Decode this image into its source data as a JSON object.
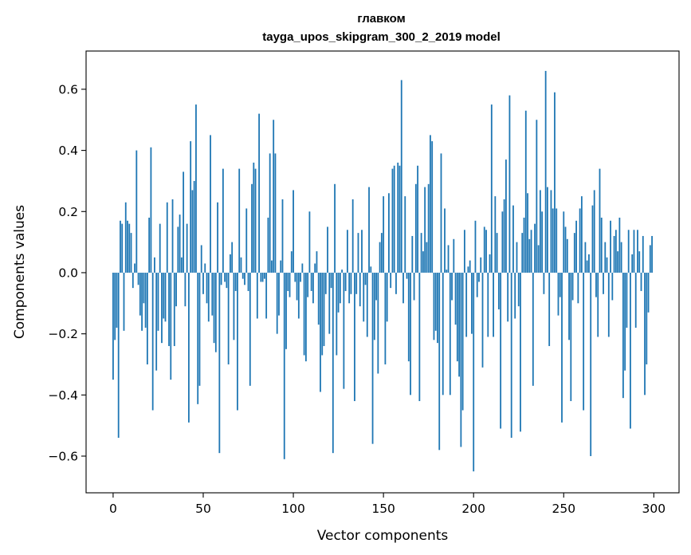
{
  "chart_data": {
    "type": "bar",
    "title": "главком",
    "subtitle": "tayga_upos_skipgram_300_2_2019 model",
    "xlabel": "Vector components",
    "ylabel": "Components values",
    "xlim": [
      -15,
      314
    ],
    "ylim": [
      -0.72,
      0.725
    ],
    "xticks": [
      0,
      50,
      100,
      150,
      200,
      250,
      300
    ],
    "yticks": [
      -0.6,
      -0.4,
      -0.2,
      0.0,
      0.2,
      0.4,
      0.6
    ],
    "xtick_labels": [
      "0",
      "50",
      "100",
      "150",
      "200",
      "250",
      "300"
    ],
    "ytick_labels": [
      "−0.6",
      "−0.4",
      "−0.2",
      "0.0",
      "0.2",
      "0.4",
      "0.6"
    ],
    "grid": false,
    "bar_color": "#1f77b4",
    "values": [
      -0.35,
      -0.22,
      -0.18,
      -0.54,
      0.17,
      0.16,
      -0.19,
      0.23,
      0.17,
      0.16,
      0.13,
      -0.05,
      0.03,
      0.4,
      -0.04,
      -0.14,
      -0.19,
      -0.1,
      -0.18,
      -0.3,
      0.18,
      0.41,
      -0.45,
      0.05,
      -0.32,
      -0.19,
      0.16,
      -0.23,
      -0.15,
      -0.16,
      0.23,
      -0.24,
      -0.35,
      0.24,
      -0.24,
      -0.11,
      0.15,
      0.19,
      0.05,
      0.33,
      -0.11,
      0.16,
      -0.49,
      0.43,
      0.27,
      0.3,
      0.55,
      -0.43,
      -0.37,
      0.09,
      -0.07,
      0.03,
      -0.1,
      -0.16,
      0.45,
      -0.14,
      -0.23,
      -0.26,
      0.23,
      -0.59,
      -0.04,
      0.34,
      -0.03,
      -0.05,
      -0.3,
      0.06,
      0.1,
      -0.22,
      -0.06,
      -0.45,
      0.34,
      0.05,
      -0.02,
      -0.04,
      0.21,
      -0.06,
      -0.37,
      0.29,
      0.36,
      0.34,
      -0.15,
      0.52,
      -0.03,
      -0.03,
      -0.02,
      -0.15,
      0.18,
      0.39,
      0.04,
      0.5,
      0.39,
      -0.2,
      -0.14,
      0.04,
      0.24,
      -0.61,
      -0.25,
      -0.06,
      -0.08,
      0.07,
      0.27,
      -0.03,
      -0.09,
      -0.15,
      -0.03,
      0.03,
      -0.27,
      -0.29,
      -0.08,
      0.2,
      -0.06,
      -0.1,
      0.03,
      0.07,
      -0.17,
      -0.39,
      -0.27,
      -0.24,
      -0.07,
      0.15,
      -0.2,
      -0.05,
      -0.59,
      0.29,
      -0.27,
      -0.13,
      -0.1,
      0.01,
      -0.38,
      -0.06,
      0.14,
      -0.1,
      -0.07,
      0.24,
      -0.42,
      -0.07,
      0.13,
      -0.11,
      0.14,
      -0.16,
      -0.04,
      -0.21,
      0.28,
      0.02,
      -0.56,
      -0.22,
      -0.09,
      -0.33,
      0.1,
      0.13,
      0.25,
      -0.3,
      -0.16,
      0.26,
      -0.05,
      0.34,
      0.35,
      -0.07,
      0.36,
      0.35,
      0.63,
      -0.1,
      0.25,
      -0.02,
      -0.29,
      -0.4,
      0.12,
      -0.09,
      0.29,
      0.35,
      -0.42,
      0.13,
      0.07,
      0.28,
      0.1,
      0.29,
      0.45,
      0.43,
      -0.22,
      -0.19,
      -0.23,
      -0.58,
      0.39,
      -0.4,
      0.21,
      0.01,
      0.09,
      -0.4,
      -0.09,
      0.11,
      -0.17,
      -0.29,
      -0.34,
      -0.57,
      -0.45,
      0.14,
      -0.21,
      0.02,
      0.04,
      -0.2,
      -0.65,
      0.17,
      -0.08,
      -0.03,
      0.05,
      -0.31,
      0.15,
      0.14,
      -0.21,
      0.06,
      0.55,
      -0.21,
      0.25,
      0.13,
      -0.12,
      -0.51,
      0.2,
      0.24,
      0.37,
      -0.16,
      0.58,
      -0.54,
      0.22,
      -0.15,
      0.1,
      -0.11,
      -0.52,
      0.13,
      0.18,
      0.53,
      0.26,
      0.11,
      0.14,
      -0.37,
      0.16,
      0.5,
      0.09,
      0.27,
      0.2,
      -0.07,
      0.66,
      0.28,
      -0.24,
      0.27,
      0.21,
      0.59,
      0.21,
      -0.14,
      -0.08,
      -0.49,
      0.2,
      0.15,
      0.11,
      -0.22,
      -0.42,
      -0.09,
      0.13,
      0.17,
      -0.1,
      0.21,
      0.25,
      -0.45,
      0.1,
      0.04,
      0.06,
      -0.6,
      0.22,
      0.27,
      -0.08,
      -0.21,
      0.34,
      0.18,
      -0.07,
      0.1,
      0.05,
      -0.21,
      0.17,
      -0.09,
      0.12,
      0.14,
      0.07,
      0.18,
      0.1,
      -0.41,
      -0.32,
      -0.18,
      0.14,
      -0.51,
      0.06,
      0.14,
      -0.18,
      0.14,
      0.07,
      -0.06,
      0.12,
      -0.4,
      -0.3,
      -0.13,
      0.09,
      0.12
    ]
  }
}
